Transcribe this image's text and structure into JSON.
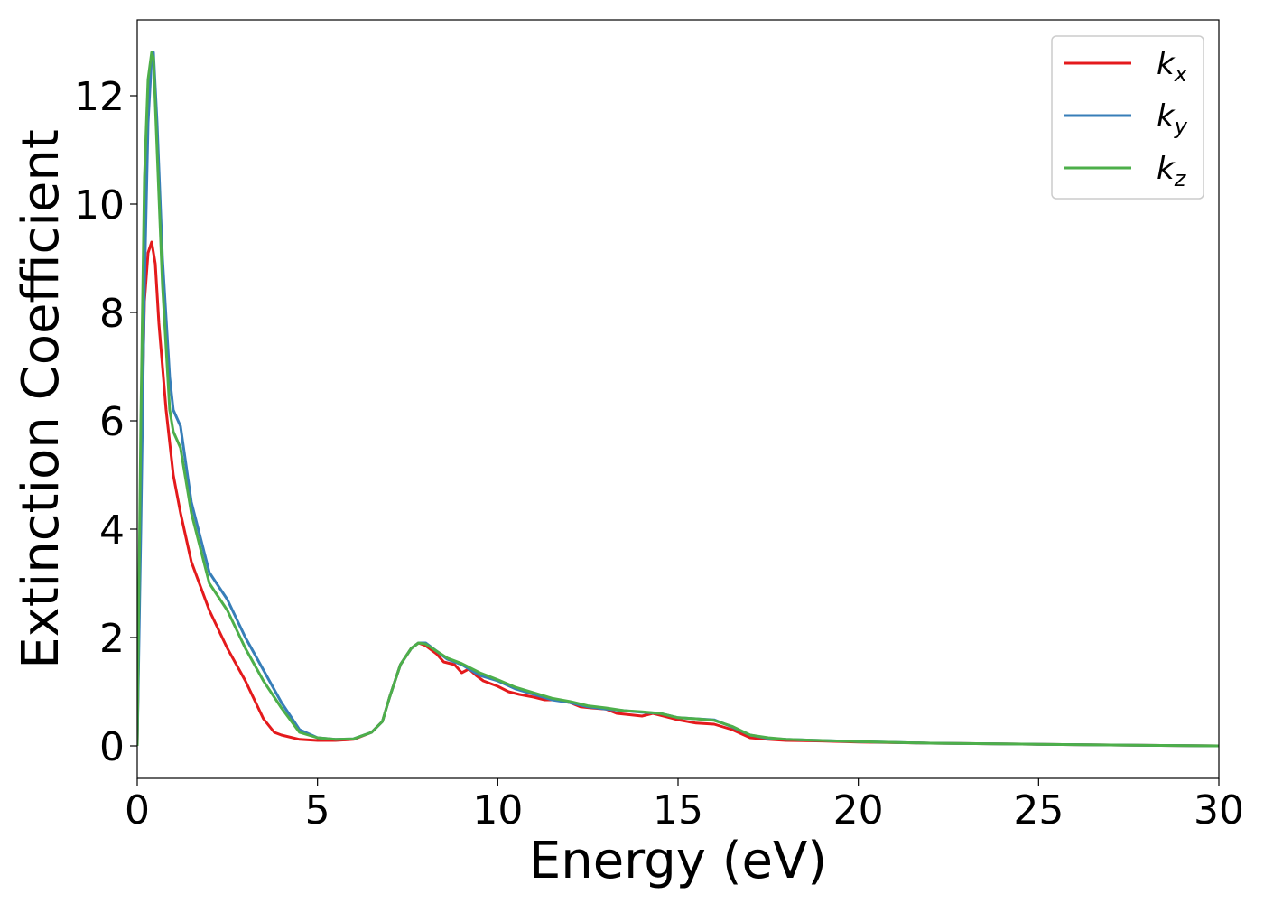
{
  "chart_data": {
    "type": "line",
    "xlabel": "Energy (eV)",
    "ylabel": "Extinction Coefficient",
    "xlim": [
      0,
      30
    ],
    "ylim": [
      -0.6,
      13.4
    ],
    "xticks": [
      0,
      5,
      10,
      15,
      20,
      25,
      30
    ],
    "yticks": [
      0,
      2,
      4,
      6,
      8,
      10,
      12
    ],
    "grid": false,
    "legend_position": "top-right",
    "series": [
      {
        "name": "k_x",
        "label_base": "k",
        "label_sub": "x",
        "color": "#e41a1c",
        "x": [
          0,
          0.1,
          0.2,
          0.3,
          0.4,
          0.5,
          0.6,
          0.8,
          1.0,
          1.2,
          1.5,
          2.0,
          2.5,
          3.0,
          3.5,
          3.8,
          4.0,
          4.5,
          5.0,
          5.5,
          6.0,
          6.5,
          6.8,
          7.0,
          7.3,
          7.6,
          7.8,
          8.0,
          8.3,
          8.5,
          8.8,
          9.0,
          9.2,
          9.4,
          9.6,
          9.8,
          10.0,
          10.3,
          10.6,
          11.0,
          11.3,
          11.6,
          12.0,
          12.3,
          12.6,
          13.0,
          13.3,
          13.6,
          14.0,
          14.3,
          14.6,
          15.0,
          15.5,
          16.0,
          16.5,
          17.0,
          17.5,
          18.0,
          19.0,
          20.0,
          22.0,
          25.0,
          28.0,
          30.0
        ],
        "y": [
          0,
          5.0,
          8.2,
          9.1,
          9.3,
          8.9,
          7.8,
          6.2,
          5.0,
          4.3,
          3.4,
          2.5,
          1.8,
          1.2,
          0.5,
          0.25,
          0.2,
          0.12,
          0.1,
          0.1,
          0.12,
          0.25,
          0.45,
          0.9,
          1.5,
          1.8,
          1.9,
          1.85,
          1.7,
          1.55,
          1.5,
          1.35,
          1.42,
          1.3,
          1.2,
          1.15,
          1.1,
          1.0,
          0.95,
          0.9,
          0.85,
          0.85,
          0.8,
          0.72,
          0.7,
          0.68,
          0.6,
          0.58,
          0.55,
          0.6,
          0.55,
          0.48,
          0.42,
          0.4,
          0.3,
          0.15,
          0.12,
          0.1,
          0.09,
          0.07,
          0.05,
          0.03,
          0.01,
          0.0
        ]
      },
      {
        "name": "k_y",
        "label_base": "k",
        "label_sub": "y",
        "color": "#377eb8",
        "x": [
          0,
          0.1,
          0.2,
          0.3,
          0.4,
          0.45,
          0.55,
          0.7,
          0.9,
          1.0,
          1.2,
          1.5,
          2.0,
          2.5,
          3.0,
          3.5,
          4.0,
          4.5,
          5.0,
          5.5,
          6.0,
          6.5,
          6.8,
          7.0,
          7.3,
          7.6,
          7.8,
          8.0,
          8.3,
          8.6,
          9.0,
          9.5,
          10.0,
          10.5,
          11.0,
          11.5,
          12.0,
          12.5,
          13.0,
          13.5,
          14.0,
          14.5,
          15.0,
          15.5,
          16.0,
          16.5,
          17.0,
          17.5,
          18.0,
          19.0,
          20.0,
          22.0,
          25.0,
          28.0,
          30.0
        ],
        "y": [
          0,
          4.0,
          8.5,
          11.5,
          12.7,
          12.8,
          11.5,
          9.0,
          6.8,
          6.2,
          5.9,
          4.5,
          3.2,
          2.7,
          2.0,
          1.4,
          0.8,
          0.3,
          0.15,
          0.12,
          0.13,
          0.25,
          0.45,
          0.9,
          1.5,
          1.8,
          1.9,
          1.9,
          1.75,
          1.6,
          1.5,
          1.3,
          1.2,
          1.05,
          0.95,
          0.85,
          0.8,
          0.72,
          0.68,
          0.65,
          0.62,
          0.6,
          0.52,
          0.5,
          0.48,
          0.35,
          0.2,
          0.14,
          0.12,
          0.1,
          0.08,
          0.05,
          0.03,
          0.01,
          0.0
        ]
      },
      {
        "name": "k_z",
        "label_base": "k",
        "label_sub": "z",
        "color": "#4daf4a",
        "x": [
          0,
          0.1,
          0.2,
          0.3,
          0.4,
          0.45,
          0.55,
          0.7,
          0.9,
          1.0,
          1.2,
          1.5,
          2.0,
          2.5,
          3.0,
          3.5,
          4.0,
          4.5,
          5.0,
          5.5,
          6.0,
          6.5,
          6.8,
          7.0,
          7.3,
          7.6,
          7.8,
          8.0,
          8.3,
          8.6,
          9.0,
          9.5,
          10.0,
          10.5,
          11.0,
          11.5,
          12.0,
          12.5,
          13.0,
          13.5,
          14.0,
          14.5,
          15.0,
          15.5,
          16.0,
          16.5,
          17.0,
          17.5,
          18.0,
          19.0,
          20.0,
          22.0,
          25.0,
          28.0,
          30.0
        ],
        "y": [
          0,
          6.0,
          10.5,
          12.3,
          12.8,
          12.7,
          11.0,
          8.5,
          6.2,
          5.8,
          5.5,
          4.3,
          3.0,
          2.5,
          1.8,
          1.2,
          0.7,
          0.25,
          0.15,
          0.12,
          0.13,
          0.25,
          0.45,
          0.9,
          1.5,
          1.8,
          1.9,
          1.88,
          1.75,
          1.62,
          1.52,
          1.35,
          1.22,
          1.08,
          0.98,
          0.88,
          0.82,
          0.74,
          0.7,
          0.65,
          0.63,
          0.6,
          0.52,
          0.5,
          0.47,
          0.36,
          0.2,
          0.15,
          0.12,
          0.1,
          0.08,
          0.05,
          0.03,
          0.01,
          0.0
        ]
      }
    ]
  }
}
